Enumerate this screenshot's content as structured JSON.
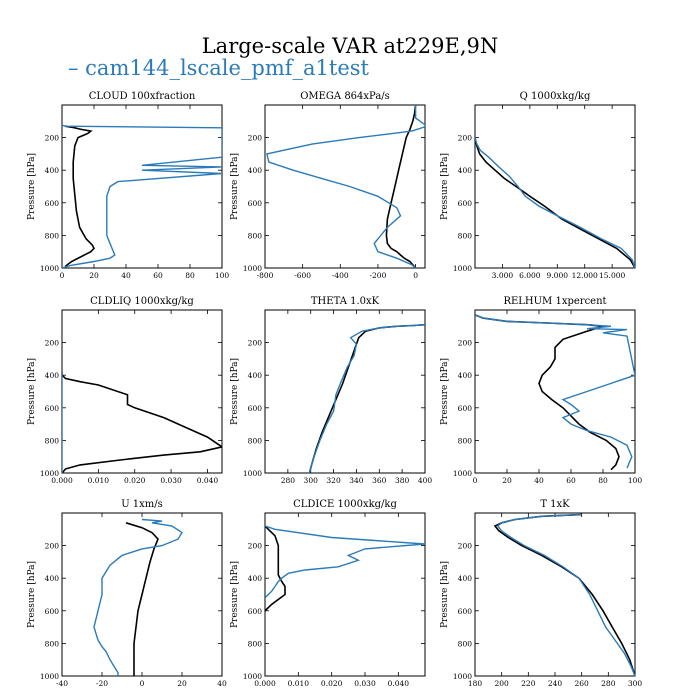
{
  "title": "Large-scale VAR at229E,9N",
  "legend": "– cam144_lscale_pmf_a1test",
  "colors": {
    "series_a": "#000000",
    "series_b": "#2b7bb9"
  },
  "chart_data": [
    {
      "type": "line",
      "title": "CLOUD 100xfraction",
      "ylabel": "Pressure [hPa]",
      "xlim": [
        0,
        100
      ],
      "ylim": [
        1000,
        0
      ],
      "xticks": [
        0,
        20,
        40,
        60,
        80,
        100
      ],
      "xticklabels": [
        "0",
        "20",
        "40",
        "60",
        "80",
        "100"
      ],
      "yticks": [
        200,
        400,
        600,
        800,
        1000
      ],
      "yticklabels": [
        "200",
        "400",
        "600",
        "800",
        "1000"
      ],
      "series": [
        {
          "x": [
            2,
            5,
            8,
            10,
            12,
            18,
            16,
            10,
            8,
            7,
            7,
            8,
            9,
            11,
            15,
            19,
            20,
            18,
            12,
            6,
            2
          ],
          "y": [
            130,
            135,
            140,
            145,
            150,
            160,
            175,
            200,
            250,
            350,
            450,
            550,
            650,
            750,
            820,
            860,
            880,
            900,
            930,
            960,
            990
          ]
        },
        {
          "x": [
            0,
            3,
            100,
            100,
            100,
            50,
            100,
            50,
            100,
            35,
            30,
            28,
            28,
            28,
            28,
            30,
            33,
            30,
            20,
            5,
            0
          ],
          "y": [
            125,
            130,
            140,
            165,
            320,
            370,
            380,
            400,
            420,
            470,
            500,
            560,
            650,
            750,
            800,
            850,
            920,
            940,
            960,
            985,
            1000
          ]
        }
      ]
    },
    {
      "type": "line",
      "title": "OMEGA 864xPa/s",
      "ylabel": "Pressure [hPa]",
      "xlim": [
        -800,
        50
      ],
      "ylim": [
        1000,
        0
      ],
      "xticks": [
        -800,
        -600,
        -400,
        -200,
        0
      ],
      "xticklabels": [
        "-800",
        "-600",
        "-400",
        "-200",
        "0"
      ],
      "yticks": [
        200,
        400,
        600,
        800,
        1000
      ],
      "yticklabels": [
        "200",
        "400",
        "600",
        "800",
        "1000"
      ],
      "series": [
        {
          "x": [
            0,
            -5,
            -15,
            -30,
            -50,
            -70,
            -90,
            -110,
            -130,
            -150,
            -155,
            -150,
            -130,
            -100,
            -80,
            -60,
            -30,
            0
          ],
          "y": [
            0,
            50,
            100,
            150,
            200,
            300,
            400,
            500,
            600,
            700,
            800,
            850,
            880,
            900,
            920,
            940,
            960,
            1000
          ]
        },
        {
          "x": [
            0,
            0,
            60,
            -20,
            -300,
            -550,
            -790,
            -780,
            -650,
            -500,
            -350,
            -200,
            -100,
            -80,
            -150,
            -220,
            -200,
            -100,
            -20,
            0
          ],
          "y": [
            0,
            80,
            130,
            160,
            200,
            240,
            300,
            350,
            400,
            450,
            500,
            560,
            630,
            680,
            750,
            850,
            900,
            940,
            980,
            1000
          ]
        }
      ]
    },
    {
      "type": "line",
      "title": "Q 1000xkg/kg",
      "ylabel": "Pressure [hPa]",
      "xlim": [
        0,
        17500
      ],
      "ylim": [
        1000,
        0
      ],
      "xticks": [
        3000,
        6000,
        9000,
        12000,
        15000
      ],
      "xticklabels": [
        "3.000",
        "6.000",
        "9.000",
        "12.000",
        "15.000"
      ],
      "yticks": [
        200,
        400,
        600,
        800,
        1000
      ],
      "yticklabels": [
        "200",
        "400",
        "600",
        "800",
        "1000"
      ],
      "series": [
        {
          "x": [
            0,
            200,
            500,
            1200,
            2200,
            3200,
            4500,
            6000,
            7600,
            9500,
            11500,
            13500,
            15500,
            17000,
            17500
          ],
          "y": [
            200,
            250,
            300,
            350,
            400,
            450,
            500,
            560,
            620,
            700,
            760,
            820,
            880,
            950,
            1000
          ]
        },
        {
          "x": [
            0,
            200,
            600,
            1500,
            2600,
            3800,
            4700,
            5500,
            7000,
            9000,
            11500,
            13800,
            16000,
            17200,
            17500
          ],
          "y": [
            200,
            240,
            280,
            320,
            380,
            440,
            500,
            560,
            620,
            680,
            750,
            820,
            880,
            950,
            1000
          ]
        }
      ]
    },
    {
      "type": "line",
      "title": "CLDLIQ 1000xkg/kg",
      "ylabel": "Pressure [hPa]",
      "xlim": [
        0,
        0.044
      ],
      "ylim": [
        1000,
        0
      ],
      "xticks": [
        0,
        0.01,
        0.02,
        0.03,
        0.04
      ],
      "xticklabels": [
        "0.000",
        "0.010",
        "0.020",
        "0.030",
        "0.040"
      ],
      "yticks": [
        200,
        400,
        600,
        800,
        1000
      ],
      "yticklabels": [
        "200",
        "400",
        "600",
        "800",
        "1000"
      ],
      "series": [
        {
          "x": [
            0,
            0,
            0.001,
            0.005,
            0.01,
            0.018,
            0.018,
            0.02,
            0.028,
            0.034,
            0.04,
            0.044,
            0.038,
            0.028,
            0.016,
            0.005,
            0.001,
            0
          ],
          "y": [
            380,
            400,
            420,
            440,
            460,
            520,
            580,
            600,
            660,
            720,
            780,
            840,
            870,
            890,
            920,
            950,
            975,
            1000
          ]
        },
        {
          "x": [
            0,
            0,
            0
          ],
          "y": [
            380,
            700,
            1000
          ]
        }
      ]
    },
    {
      "type": "line",
      "title": "THETA 1.0xK",
      "ylabel": "Pressure [hPa]",
      "xlim": [
        260,
        400
      ],
      "ylim": [
        1000,
        0
      ],
      "xticks": [
        280,
        300,
        320,
        340,
        360,
        380,
        400
      ],
      "xticklabels": [
        "280",
        "300",
        "320",
        "340",
        "360",
        "380",
        "400"
      ],
      "yticks": [
        200,
        400,
        600,
        800,
        1000
      ],
      "yticklabels": [
        "200",
        "400",
        "600",
        "800",
        "1000"
      ],
      "series": [
        {
          "x": [
            400,
            390,
            375,
            360,
            348,
            342,
            338,
            333,
            328,
            322,
            316,
            310,
            305,
            302,
            300,
            299
          ],
          "y": [
            90,
            95,
            100,
            110,
            130,
            170,
            250,
            350,
            450,
            550,
            650,
            750,
            850,
            920,
            970,
            1000
          ]
        },
        {
          "x": [
            400,
            390,
            375,
            360,
            345,
            335,
            340,
            338,
            332,
            326,
            322,
            320,
            314,
            308,
            303,
            300,
            299
          ],
          "y": [
            90,
            95,
            100,
            110,
            130,
            170,
            210,
            280,
            350,
            450,
            520,
            620,
            700,
            800,
            900,
            970,
            1000
          ]
        }
      ]
    },
    {
      "type": "line",
      "title": "RELHUM 1xpercent",
      "ylabel": "Pressure [hPa]",
      "xlim": [
        0,
        100
      ],
      "ylim": [
        1000,
        0
      ],
      "xticks": [
        0,
        20,
        40,
        60,
        80,
        100
      ],
      "xticklabels": [
        "0",
        "20",
        "40",
        "60",
        "80",
        "100"
      ],
      "yticks": [
        200,
        400,
        600,
        800,
        1000
      ],
      "yticklabels": [
        "200",
        "400",
        "600",
        "800",
        "1000"
      ],
      "series": [
        {
          "x": [
            0,
            5,
            20,
            45,
            70,
            80,
            70,
            55,
            50,
            50,
            47,
            42,
            40,
            42,
            48,
            55,
            60,
            65,
            72,
            82,
            88,
            90,
            88,
            85
          ],
          "y": [
            30,
            50,
            70,
            80,
            90,
            100,
            130,
            180,
            230,
            300,
            350,
            400,
            450,
            500,
            550,
            600,
            650,
            700,
            750,
            800,
            850,
            900,
            950,
            980
          ]
        },
        {
          "x": [
            0,
            5,
            20,
            45,
            70,
            85,
            70,
            95,
            80,
            95,
            100,
            85,
            70,
            55,
            60,
            65,
            55,
            60,
            70,
            85,
            95,
            98,
            95
          ],
          "y": [
            30,
            50,
            70,
            80,
            90,
            100,
            115,
            120,
            140,
            160,
            400,
            450,
            500,
            550,
            580,
            620,
            660,
            700,
            740,
            780,
            830,
            900,
            970
          ]
        }
      ]
    },
    {
      "type": "line",
      "title": "U 1xm/s",
      "ylabel": "Pressure [hPa]",
      "xlim": [
        -40,
        40
      ],
      "ylim": [
        1000,
        0
      ],
      "xticks": [
        -40,
        -20,
        0,
        20,
        40
      ],
      "xticklabels": [
        "-40",
        "-20",
        "0",
        "20",
        "40"
      ],
      "yticks": [
        200,
        400,
        600,
        800,
        1000
      ],
      "yticklabels": [
        "200",
        "400",
        "600",
        "800",
        "1000"
      ],
      "series": [
        {
          "x": [
            -8,
            0,
            5,
            8,
            6,
            4,
            2,
            0,
            -2,
            -3,
            -4,
            -4,
            -4,
            -4
          ],
          "y": [
            60,
            90,
            120,
            160,
            220,
            300,
            400,
            500,
            600,
            700,
            800,
            900,
            960,
            1000
          ]
        },
        {
          "x": [
            0,
            10,
            5,
            15,
            20,
            18,
            10,
            0,
            -10,
            -16,
            -20,
            -20,
            -22,
            -24,
            -22,
            -20,
            -18,
            -16,
            -14,
            -12,
            -12
          ],
          "y": [
            40,
            50,
            60,
            80,
            120,
            160,
            200,
            220,
            260,
            320,
            400,
            500,
            600,
            700,
            780,
            820,
            850,
            900,
            940,
            980,
            1000
          ]
        }
      ]
    },
    {
      "type": "line",
      "title": "CLDICE 1000xkg/kg",
      "ylabel": "Pressure [hPa]",
      "xlim": [
        0,
        0.048
      ],
      "ylim": [
        1000,
        0
      ],
      "xticks": [
        0,
        0.01,
        0.02,
        0.03,
        0.04
      ],
      "xticklabels": [
        "0.000",
        "0.010",
        "0.020",
        "0.030",
        "0.040"
      ],
      "yticks": [
        200,
        400,
        600,
        800,
        1000
      ],
      "yticklabels": [
        "200",
        "400",
        "600",
        "800",
        "1000"
      ],
      "series": [
        {
          "x": [
            0,
            0.001,
            0.003,
            0.004,
            0.004,
            0.004,
            0.004,
            0.005,
            0.006,
            0.006,
            0.002,
            0
          ],
          "y": [
            80,
            100,
            140,
            200,
            260,
            320,
            380,
            420,
            450,
            500,
            560,
            600
          ]
        },
        {
          "x": [
            0,
            0.003,
            0.02,
            0.048,
            0.03,
            0.025,
            0.028,
            0.022,
            0.012,
            0.007,
            0.005,
            0.004,
            0.003,
            0.002,
            0.001,
            0
          ],
          "y": [
            80,
            100,
            150,
            190,
            220,
            260,
            290,
            330,
            350,
            370,
            400,
            420,
            450,
            480,
            500,
            520
          ]
        }
      ]
    },
    {
      "type": "line",
      "title": "T 1xK",
      "ylabel": "Pressure [hPa]",
      "xlim": [
        180,
        300
      ],
      "ylim": [
        1000,
        0
      ],
      "xticks": [
        180,
        200,
        220,
        240,
        260,
        280,
        300
      ],
      "xticklabels": [
        "180",
        "200",
        "220",
        "240",
        "260",
        "280",
        "300"
      ],
      "yticks": [
        200,
        400,
        600,
        800,
        1000
      ],
      "yticklabels": [
        "200",
        "400",
        "600",
        "800",
        "1000"
      ],
      "series": [
        {
          "x": [
            260,
            230,
            210,
            200,
            195,
            198,
            205,
            215,
            230,
            245,
            258,
            268,
            276,
            283,
            290,
            296,
            300
          ],
          "y": [
            10,
            20,
            40,
            60,
            80,
            110,
            150,
            200,
            260,
            330,
            400,
            500,
            600,
            700,
            800,
            900,
            1000
          ]
        },
        {
          "x": [
            260,
            230,
            210,
            200,
            197,
            200,
            207,
            217,
            232,
            246,
            258,
            266,
            272,
            278,
            285,
            292,
            297,
            300
          ],
          "y": [
            10,
            20,
            40,
            60,
            80,
            110,
            150,
            200,
            260,
            330,
            400,
            500,
            600,
            700,
            780,
            860,
            940,
            1000
          ]
        }
      ]
    }
  ]
}
